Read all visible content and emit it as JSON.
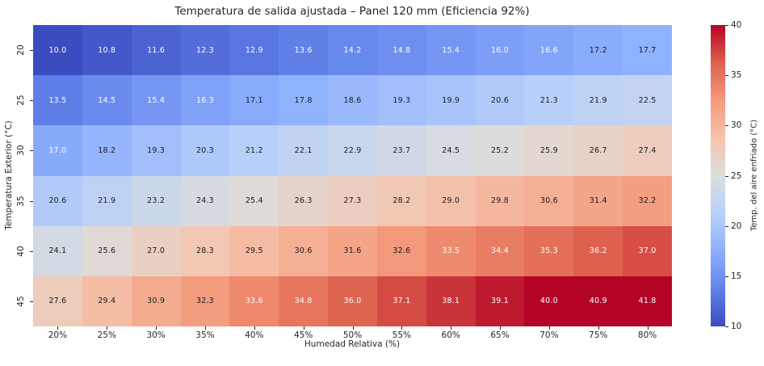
{
  "figure": {
    "background": "#ffffff",
    "axis_text_color": "#262626"
  },
  "chart_data": {
    "type": "heatmap",
    "title": "Temperatura de salida ajustada – Panel 120 mm (Eficiencia 92%)",
    "xlabel": "Humedad Relativa (%)",
    "ylabel": "Temperatura Exterior (°C)",
    "x_tick_labels": [
      "20%",
      "25%",
      "30%",
      "35%",
      "40%",
      "45%",
      "50%",
      "55%",
      "60%",
      "65%",
      "70%",
      "75%",
      "80%"
    ],
    "y_tick_labels": [
      "20",
      "25",
      "30",
      "35",
      "40",
      "45"
    ],
    "values": [
      [
        10.0,
        10.8,
        11.6,
        12.3,
        12.9,
        13.6,
        14.2,
        14.8,
        15.4,
        16.0,
        16.6,
        17.2,
        17.7
      ],
      [
        13.5,
        14.5,
        15.4,
        16.3,
        17.1,
        17.8,
        18.6,
        19.3,
        19.9,
        20.6,
        21.3,
        21.9,
        22.5
      ],
      [
        17.0,
        18.2,
        19.3,
        20.3,
        21.2,
        22.1,
        22.9,
        23.7,
        24.5,
        25.2,
        25.9,
        26.7,
        27.4
      ],
      [
        20.6,
        21.9,
        23.2,
        24.3,
        25.4,
        26.3,
        27.3,
        28.2,
        29.0,
        29.8,
        30.6,
        31.4,
        32.2
      ],
      [
        24.1,
        25.6,
        27.0,
        28.3,
        29.5,
        30.6,
        31.6,
        32.6,
        33.5,
        34.4,
        35.3,
        36.2,
        37.0
      ],
      [
        27.6,
        29.4,
        30.9,
        32.3,
        33.6,
        34.8,
        36.0,
        37.1,
        38.1,
        39.1,
        40.0,
        40.9,
        41.8
      ]
    ],
    "vmin": 10,
    "vmax": 40,
    "colormap": "coolwarm",
    "colormap_stops": [
      [
        0.0,
        "#3B4CC0"
      ],
      [
        0.125,
        "#6282EA"
      ],
      [
        0.25,
        "#8DB0FE"
      ],
      [
        0.375,
        "#B8D0F9"
      ],
      [
        0.5,
        "#DDDDDD"
      ],
      [
        0.625,
        "#F5C4AD"
      ],
      [
        0.75,
        "#F49A7B"
      ],
      [
        0.875,
        "#DE604D"
      ],
      [
        1.0,
        "#B40426"
      ]
    ],
    "annot_text_colors": {
      "light": "#FFFFFF",
      "dark": "#1A1A1A"
    },
    "colorbar": {
      "label": "Temp. del aire enfriado (°C)",
      "ticks": [
        10,
        15,
        20,
        25,
        30,
        35,
        40
      ]
    },
    "legend": "colorbar-right",
    "grid": false
  }
}
